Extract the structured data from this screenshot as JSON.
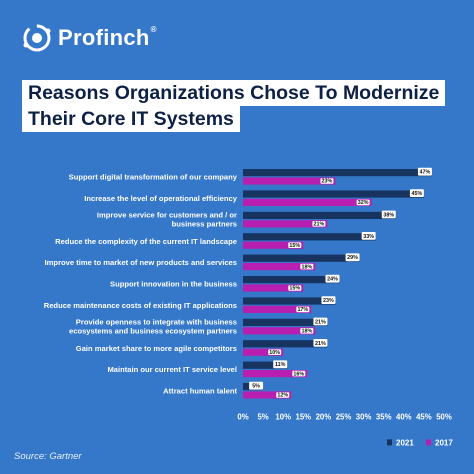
{
  "brand": {
    "name": "Profinch",
    "reg": "®"
  },
  "title_lines": [
    "Reasons Organizations Chose To Modernize",
    "Their Core IT Systems"
  ],
  "source": "Source: Gartner",
  "colors": {
    "background": "#3578c9",
    "series_2021": "#16345f",
    "series_2017": "#b81fb0",
    "title_text": "#0d2146"
  },
  "chart_data": {
    "type": "bar",
    "orientation": "horizontal",
    "title": "Reasons Organizations Chose To Modernize Their Core IT Systems",
    "categories": [
      [
        "Support digital transformation of our company"
      ],
      [
        "Increase the level of operational efficiency"
      ],
      [
        "Improve service for customers and / or",
        "business partners"
      ],
      [
        "Reduce the complexity of the current IT landscape"
      ],
      [
        "Improve time to market of new products and services"
      ],
      [
        "Support innovation in the business"
      ],
      [
        "Reduce maintenance costs of existing IT applications"
      ],
      [
        "Provide openness to integrate with business",
        "ecosystems and business ecosystem partners"
      ],
      [
        "Gain market share to more agile competitors"
      ],
      [
        "Maintain our current IT service level"
      ],
      [
        "Attract human talent"
      ]
    ],
    "series": [
      {
        "name": "2021",
        "color": "#16345f",
        "values": [
          47,
          45,
          38,
          33,
          29,
          24,
          23,
          21,
          21,
          11,
          5
        ]
      },
      {
        "name": "2017",
        "color": "#b81fb0",
        "values": [
          23,
          32,
          21,
          15,
          18,
          15,
          17,
          18,
          10,
          16,
          12
        ]
      }
    ],
    "value_suffix": "%",
    "xlim": [
      0,
      50
    ],
    "xticks": [
      "0%",
      "5%",
      "10%",
      "15%",
      "20%",
      "25%",
      "30%",
      "35%",
      "40%",
      "45%",
      "50%"
    ],
    "grid": false,
    "legend_position": "bottom-right"
  }
}
